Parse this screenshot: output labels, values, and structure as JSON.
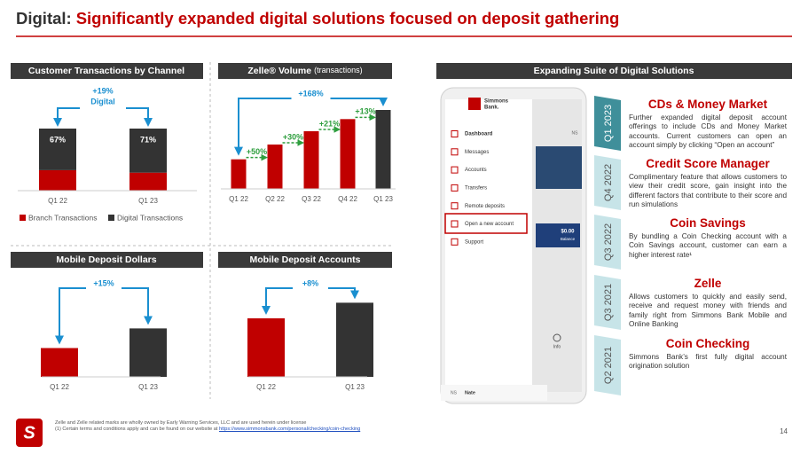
{
  "header": {
    "title_lead": "Digital:",
    "title": "Significantly expanded digital solutions focused on deposit gathering"
  },
  "chart_data": [
    {
      "type": "stacked_bar",
      "title": "Customer Transactions by Channel",
      "categories": [
        "Q1 22",
        "Q1 23"
      ],
      "series": [
        {
          "name": "Branch Transactions",
          "color": "#c00000",
          "values": [
            33,
            29
          ]
        },
        {
          "name": "Digital Transactions",
          "color": "#333333",
          "values": [
            67,
            71
          ],
          "value_labels": [
            "67%",
            "71%"
          ]
        }
      ],
      "ylim": [
        0,
        100
      ],
      "annotation": [
        "+19%",
        "Digital"
      ],
      "legend": "bottom"
    },
    {
      "type": "bar",
      "title": "Zelle® Volume",
      "subtitle": "(transactions)",
      "categories": [
        "Q1 22",
        "Q2 22",
        "Q3 22",
        "Q4 22",
        "Q1 23"
      ],
      "values": [
        100,
        150,
        195,
        236,
        267
      ],
      "colors": [
        "#c00000",
        "#c00000",
        "#c00000",
        "#c00000",
        "#333333"
      ],
      "ylim": [
        0,
        300
      ],
      "growth_labels": [
        "+50%",
        "+30%",
        "+21%",
        "+13%"
      ],
      "annotation": [
        "+168%"
      ]
    },
    {
      "type": "bar",
      "title": "Mobile Deposit Dollars",
      "categories": [
        "Q1 22",
        "Q1 23"
      ],
      "values": [
        100,
        115
      ],
      "colors": [
        "#c00000",
        "#333333"
      ],
      "ylim": [
        78,
        120
      ],
      "annotation": [
        "+15%"
      ]
    },
    {
      "type": "bar",
      "title": "Mobile Deposit Accounts",
      "categories": [
        "Q1 22",
        "Q1 23"
      ],
      "values": [
        100,
        108
      ],
      "colors": [
        "#c00000",
        "#333333"
      ],
      "ylim": [
        70,
        110
      ],
      "annotation": [
        "+8%"
      ]
    }
  ],
  "suite_title": "Expanding Suite of Digital Solutions",
  "phone": {
    "logo": [
      "Simmons",
      "Bank."
    ],
    "menu": [
      "Dashboard",
      "Messages",
      "Accounts",
      "Transfers",
      "Remote deposits",
      "Open a new account",
      "Support"
    ],
    "initials": "NS",
    "balance": "$0.00",
    "balance_label": "Balance",
    "info": "Info",
    "user": "Nate"
  },
  "timeline": [
    {
      "period": "Q1 2023",
      "title": "CDs & Money Market",
      "text": "Further expanded digital deposit account offerings to include CDs and Money Market accounts. Current customers can open an account simply by clicking “Open an account”"
    },
    {
      "period": "Q4 2022",
      "title": "Credit Score Manager",
      "text": "Complimentary feature that allows customers to view their credit score, gain insight into the different factors that contribute to their score and run simulations"
    },
    {
      "period": "Q3 2022",
      "title": "Coin Savings",
      "text": "By bundling a Coin Checking account with a Coin Savings account, customer can earn a higher interest rate¹"
    },
    {
      "period": "Q3 2021",
      "title": "Zelle",
      "text": "Allows customers to quickly and easily send, receive and request money with friends and family right from Simmons Bank Mobile and Online Banking"
    },
    {
      "period": "Q2 2021",
      "title": "Coin Checking",
      "text": "Simmons Bank’s first fully digital account origination solution"
    }
  ],
  "footer": {
    "note_1": "Zelle and Zelle related marks are wholly owned by Early Warning Services, LLC and are used herein under license",
    "note_2": "(1) Certain terms and conditions apply and can be found on our website at",
    "link": "https://www.simmonsbank.com/personal/checking/coin-checking",
    "page": "14"
  }
}
